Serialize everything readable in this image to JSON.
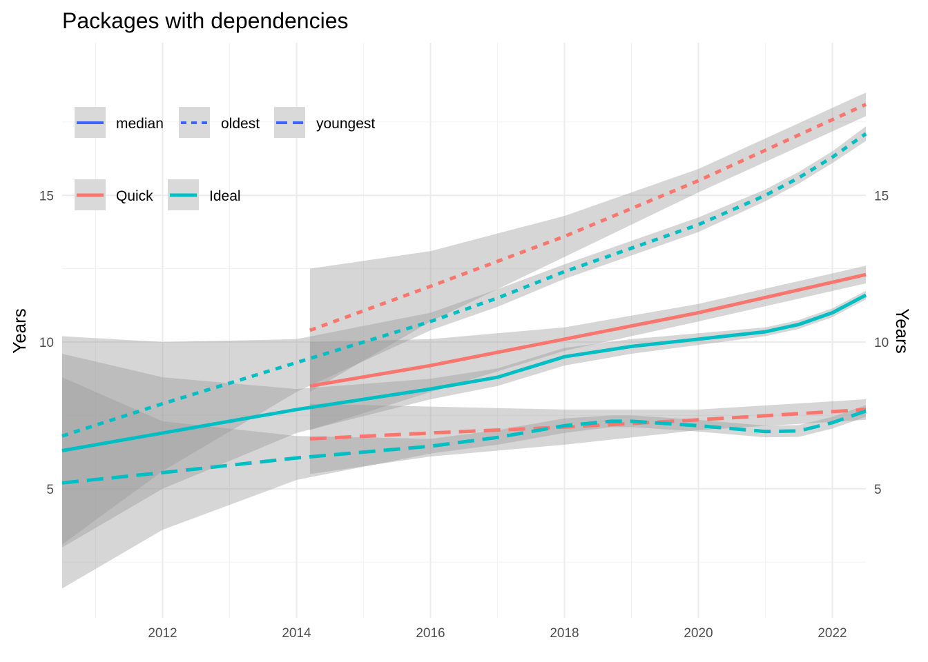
{
  "chart_data": {
    "type": "line",
    "title": "Packages with dependencies",
    "xlabel": "",
    "ylabel": "Years",
    "ylabel_right": "Years",
    "xlim": [
      2010.5,
      2022.5
    ],
    "ylim": [
      0.6,
      20.2
    ],
    "x_ticks": [
      2012,
      2014,
      2016,
      2018,
      2020,
      2022
    ],
    "y_ticks": [
      5,
      10,
      15
    ],
    "grid": true,
    "legend_linetype": {
      "placement": "top-left",
      "color": "#3d63ff",
      "entries": [
        {
          "label": "median",
          "dash": "solid"
        },
        {
          "label": "oldest",
          "dash": "dotted"
        },
        {
          "label": "youngest",
          "dash": "dashed"
        }
      ]
    },
    "legend_color": {
      "placement": "top-left",
      "entries": [
        {
          "label": "Quick",
          "color": "#f8766d"
        },
        {
          "label": "Ideal",
          "color": "#00bfc4"
        }
      ]
    },
    "series": [
      {
        "name": "Quick",
        "stat": "oldest",
        "dash": "dotted",
        "color": "#f8766d",
        "x": [
          2014.2,
          2016,
          2018,
          2020,
          2022.5
        ],
        "y": [
          10.4,
          11.9,
          13.6,
          15.5,
          18.1
        ],
        "band_upper": [
          12.5,
          13.1,
          14.3,
          15.9,
          18.5
        ],
        "band_lower": [
          8.3,
          10.7,
          12.9,
          15.1,
          17.7
        ]
      },
      {
        "name": "Quick",
        "stat": "median",
        "dash": "solid",
        "color": "#f8766d",
        "x": [
          2014.2,
          2016,
          2018,
          2020,
          2022.5
        ],
        "y": [
          8.5,
          9.2,
          10.1,
          11.0,
          12.3
        ],
        "band_upper": [
          10.0,
          10.1,
          10.5,
          11.3,
          12.6
        ],
        "band_lower": [
          7.0,
          8.3,
          9.7,
          10.7,
          12.0
        ]
      },
      {
        "name": "Quick",
        "stat": "youngest",
        "dash": "dashed",
        "color": "#f8766d",
        "x": [
          2014.2,
          2016,
          2018,
          2020,
          2022.5
        ],
        "y": [
          6.7,
          6.9,
          7.1,
          7.35,
          7.7
        ],
        "band_upper": [
          7.9,
          7.8,
          7.7,
          7.7,
          8.05
        ],
        "band_lower": [
          5.5,
          6.1,
          6.5,
          7.0,
          7.35
        ]
      },
      {
        "name": "Ideal",
        "stat": "oldest",
        "dash": "dotted",
        "color": "#00bfc4",
        "x": [
          2010.5,
          2012,
          2014,
          2016,
          2017,
          2018,
          2019,
          2020,
          2021,
          2021.5,
          2022,
          2022.5
        ],
        "y": [
          6.8,
          7.9,
          9.3,
          10.7,
          11.5,
          12.4,
          13.2,
          14.0,
          15.0,
          15.6,
          16.3,
          17.1
        ],
        "band_upper": [
          10.2,
          10.0,
          10.1,
          11.0,
          11.8,
          12.65,
          13.45,
          14.25,
          15.2,
          15.8,
          16.5,
          17.35
        ],
        "band_lower": [
          3.1,
          5.6,
          8.3,
          10.4,
          11.2,
          12.15,
          12.95,
          13.75,
          14.8,
          15.4,
          16.1,
          16.85
        ]
      },
      {
        "name": "Ideal",
        "stat": "median",
        "dash": "solid",
        "color": "#00bfc4",
        "x": [
          2010.5,
          2012,
          2014,
          2016,
          2017,
          2018,
          2019,
          2020,
          2021,
          2021.5,
          2022,
          2022.5
        ],
        "y": [
          6.3,
          6.9,
          7.7,
          8.4,
          8.8,
          9.5,
          9.85,
          10.1,
          10.35,
          10.6,
          11.0,
          11.6
        ],
        "band_upper": [
          9.6,
          8.8,
          8.4,
          8.75,
          9.1,
          9.8,
          10.1,
          10.3,
          10.5,
          10.75,
          11.15,
          11.75
        ],
        "band_lower": [
          3.0,
          5.0,
          6.9,
          8.05,
          8.5,
          9.2,
          9.6,
          9.9,
          10.2,
          10.45,
          10.85,
          11.45
        ]
      },
      {
        "name": "Ideal",
        "stat": "youngest",
        "dash": "dashed",
        "color": "#00bfc4",
        "x": [
          2010.5,
          2012,
          2014,
          2016,
          2017,
          2018,
          2018.7,
          2019,
          2020,
          2021,
          2021.5,
          2022,
          2022.5
        ],
        "y": [
          5.2,
          5.55,
          6.05,
          6.45,
          6.75,
          7.15,
          7.3,
          7.3,
          7.15,
          6.95,
          6.97,
          7.25,
          7.65
        ],
        "band_upper": [
          8.8,
          7.3,
          6.8,
          6.7,
          7.0,
          7.4,
          7.5,
          7.5,
          7.35,
          7.15,
          7.17,
          7.45,
          7.85
        ],
        "band_lower": [
          1.6,
          3.6,
          5.3,
          6.2,
          6.5,
          6.9,
          7.1,
          7.1,
          6.95,
          6.75,
          6.77,
          7.05,
          7.45
        ]
      }
    ]
  }
}
